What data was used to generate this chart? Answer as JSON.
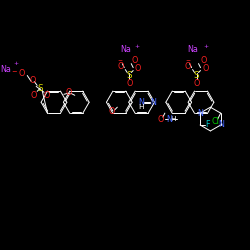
{
  "bg_color": "#000000",
  "fig_size": [
    2.5,
    2.5
  ],
  "dpi": 100,
  "bond_color": "#ffffff",
  "bond_lw": 0.7,
  "fs": 5.8,
  "colors": {
    "Na": "#cc44ff",
    "O": "#ff2222",
    "S": "#dddd00",
    "N": "#4466ff",
    "F": "#00cccc",
    "Cl": "#00cc00",
    "C": "#ffffff",
    "H": "#ffffff"
  }
}
